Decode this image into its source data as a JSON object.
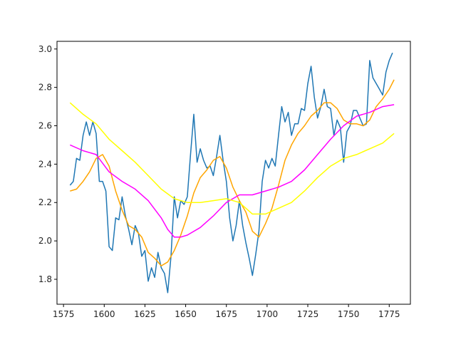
{
  "chart_data": {
    "type": "line",
    "title": "",
    "xlabel": "",
    "ylabel": "",
    "xlim": [
      1571,
      1788
    ],
    "ylim": [
      1.67,
      3.04
    ],
    "x_ticks": [
      1575,
      1600,
      1625,
      1650,
      1675,
      1700,
      1725,
      1750,
      1775
    ],
    "y_ticks": [
      1.8,
      2.0,
      2.2,
      2.4,
      2.6,
      2.8,
      3.0
    ],
    "x_tick_labels": [
      "1575",
      "1600",
      "1625",
      "1650",
      "1675",
      "1700",
      "1725",
      "1750",
      "1775"
    ],
    "y_tick_labels": [
      "1.8",
      "2.0",
      "2.2",
      "2.4",
      "2.6",
      "2.8",
      "3.0"
    ],
    "grid": false,
    "legend": "none",
    "colors": {
      "raw": "#1f77b4",
      "ma_short": "#ffa500",
      "ma_medium": "#ff00ff",
      "ma_long": "#ffff00"
    },
    "series": [
      {
        "key": "raw",
        "x": [
          1579,
          1581,
          1583,
          1585,
          1587,
          1589,
          1591,
          1593,
          1595,
          1597,
          1599,
          1601,
          1603,
          1605,
          1607,
          1609,
          1611,
          1613,
          1615,
          1617,
          1619,
          1621,
          1623,
          1625,
          1627,
          1629,
          1631,
          1633,
          1635,
          1637,
          1639,
          1641,
          1643,
          1645,
          1647,
          1649,
          1651,
          1653,
          1655,
          1657,
          1659,
          1661,
          1663,
          1665,
          1667,
          1669,
          1671,
          1673,
          1675,
          1677,
          1679,
          1681,
          1683,
          1685,
          1687,
          1689,
          1691,
          1693,
          1695,
          1697,
          1699,
          1701,
          1703,
          1705,
          1707,
          1709,
          1711,
          1713,
          1715,
          1717,
          1719,
          1721,
          1723,
          1725,
          1727,
          1729,
          1731,
          1733,
          1735,
          1737,
          1739,
          1741,
          1743,
          1745,
          1747,
          1749,
          1751,
          1753,
          1755,
          1757,
          1759,
          1761,
          1763,
          1765,
          1767,
          1769,
          1771,
          1773,
          1775,
          1777
        ],
        "y": [
          2.29,
          2.31,
          2.43,
          2.42,
          2.55,
          2.62,
          2.55,
          2.62,
          2.56,
          2.31,
          2.31,
          2.26,
          1.97,
          1.95,
          2.12,
          2.11,
          2.23,
          2.13,
          2.06,
          1.98,
          2.08,
          2.04,
          1.92,
          1.95,
          1.79,
          1.86,
          1.81,
          1.94,
          1.86,
          1.83,
          1.73,
          1.92,
          2.23,
          2.12,
          2.21,
          2.19,
          2.23,
          2.45,
          2.66,
          2.41,
          2.48,
          2.42,
          2.38,
          2.39,
          2.34,
          2.44,
          2.55,
          2.42,
          2.31,
          2.12,
          2.0,
          2.08,
          2.21,
          2.08,
          1.99,
          1.91,
          1.82,
          1.93,
          2.05,
          2.31,
          2.42,
          2.38,
          2.43,
          2.39,
          2.55,
          2.7,
          2.62,
          2.67,
          2.55,
          2.61,
          2.61,
          2.69,
          2.68,
          2.82,
          2.91,
          2.75,
          2.64,
          2.7,
          2.79,
          2.7,
          2.69,
          2.55,
          2.63,
          2.59,
          2.41,
          2.57,
          2.6,
          2.68,
          2.68,
          2.64,
          2.6,
          2.61,
          2.94,
          2.85,
          2.82,
          2.79,
          2.76,
          2.88,
          2.94,
          2.98
        ]
      },
      {
        "key": "ma_short",
        "x": [
          1579,
          1583,
          1587,
          1591,
          1595,
          1599,
          1603,
          1607,
          1611,
          1615,
          1619,
          1623,
          1627,
          1631,
          1635,
          1639,
          1643,
          1647,
          1651,
          1655,
          1659,
          1663,
          1667,
          1671,
          1675,
          1679,
          1683,
          1687,
          1691,
          1695,
          1699,
          1703,
          1707,
          1711,
          1715,
          1719,
          1723,
          1727,
          1731,
          1735,
          1739,
          1743,
          1747,
          1751,
          1755,
          1759,
          1763,
          1767,
          1771,
          1775,
          1778
        ],
        "y": [
          2.26,
          2.27,
          2.31,
          2.36,
          2.43,
          2.45,
          2.39,
          2.26,
          2.16,
          2.08,
          2.06,
          2.02,
          1.94,
          1.91,
          1.87,
          1.89,
          1.95,
          2.03,
          2.13,
          2.25,
          2.33,
          2.37,
          2.42,
          2.44,
          2.38,
          2.28,
          2.21,
          2.15,
          2.05,
          2.02,
          2.09,
          2.17,
          2.29,
          2.42,
          2.5,
          2.56,
          2.6,
          2.65,
          2.68,
          2.72,
          2.72,
          2.69,
          2.63,
          2.61,
          2.61,
          2.6,
          2.63,
          2.7,
          2.74,
          2.79,
          2.84
        ]
      },
      {
        "key": "ma_medium",
        "x": [
          1579,
          1587,
          1595,
          1603,
          1611,
          1619,
          1627,
          1635,
          1639,
          1643,
          1647,
          1651,
          1659,
          1667,
          1675,
          1683,
          1691,
          1699,
          1707,
          1715,
          1723,
          1731,
          1739,
          1747,
          1755,
          1763,
          1771,
          1778
        ],
        "y": [
          2.5,
          2.47,
          2.45,
          2.36,
          2.31,
          2.27,
          2.21,
          2.12,
          2.06,
          2.02,
          2.02,
          2.03,
          2.07,
          2.13,
          2.2,
          2.24,
          2.24,
          2.26,
          2.28,
          2.31,
          2.37,
          2.45,
          2.53,
          2.6,
          2.65,
          2.67,
          2.7,
          2.71
        ]
      },
      {
        "key": "ma_long",
        "x": [
          1579,
          1587,
          1595,
          1603,
          1611,
          1619,
          1627,
          1635,
          1643,
          1651,
          1659,
          1667,
          1675,
          1683,
          1691,
          1699,
          1707,
          1715,
          1723,
          1731,
          1739,
          1747,
          1755,
          1763,
          1771,
          1778
        ],
        "y": [
          2.72,
          2.66,
          2.61,
          2.53,
          2.47,
          2.41,
          2.34,
          2.27,
          2.22,
          2.2,
          2.2,
          2.21,
          2.22,
          2.2,
          2.14,
          2.14,
          2.17,
          2.2,
          2.26,
          2.33,
          2.39,
          2.43,
          2.45,
          2.48,
          2.51,
          2.56
        ]
      }
    ]
  }
}
